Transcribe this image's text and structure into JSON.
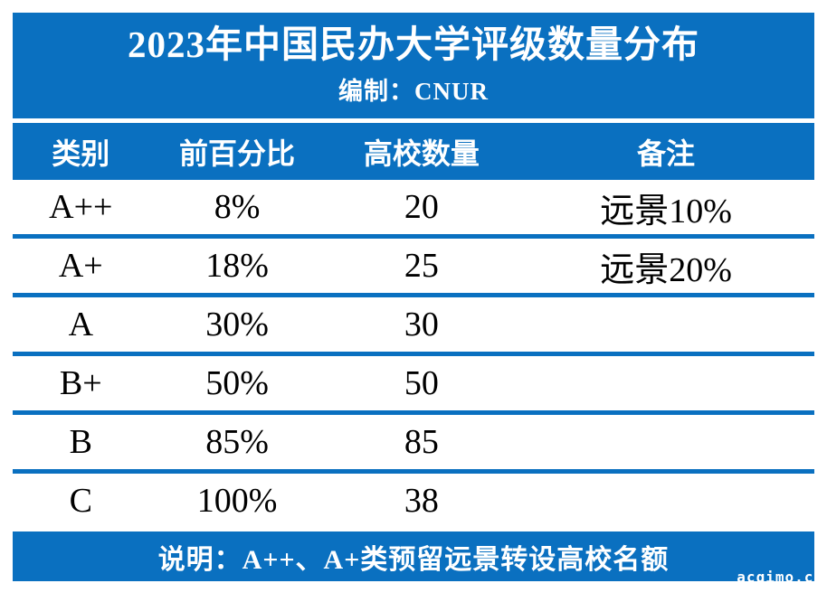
{
  "colors": {
    "accent_blue": "#0a70c0",
    "band_text": "#ffffff",
    "body_text": "#000000"
  },
  "header": {
    "title": "2023年中国民办大学评级数量分布",
    "subtitle": "编制：CNUR"
  },
  "table": {
    "columns": [
      "类别",
      "前百分比",
      "高校数量",
      "备注"
    ],
    "rows": [
      {
        "category": "A++",
        "percent": "8%",
        "count": "20",
        "note": "远景10%"
      },
      {
        "category": "A+",
        "percent": "18%",
        "count": "25",
        "note": "远景20%"
      },
      {
        "category": "A",
        "percent": "30%",
        "count": "30",
        "note": ""
      },
      {
        "category": "B+",
        "percent": "50%",
        "count": "50",
        "note": ""
      },
      {
        "category": "B",
        "percent": "85%",
        "count": "85",
        "note": ""
      },
      {
        "category": "C",
        "percent": "100%",
        "count": "38",
        "note": ""
      }
    ]
  },
  "footer": {
    "note": "说明：A++、A+类预留远景转设高校名额"
  },
  "watermark": "acgimo.co"
}
